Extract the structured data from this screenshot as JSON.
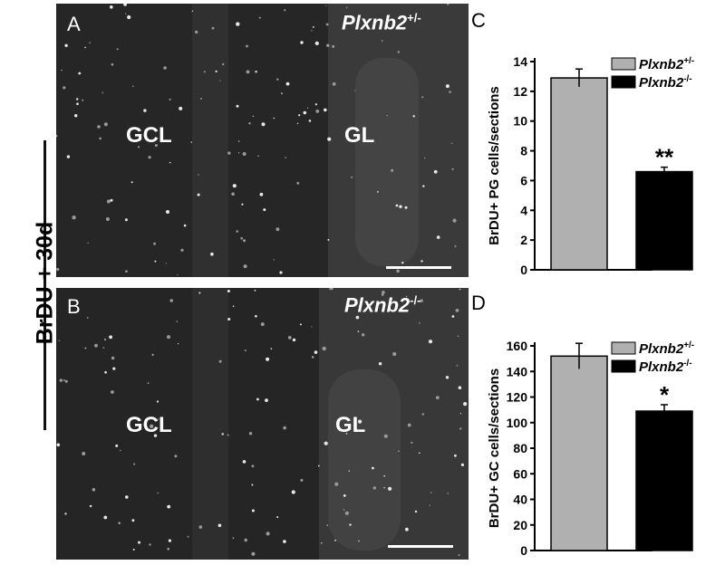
{
  "side_label": "BrDU + 30d",
  "panel_a": {
    "letter": "A",
    "genotype": "Plxnb2",
    "genotype_sup": "+/-",
    "region_left": "GCL",
    "region_right": "GL"
  },
  "panel_b": {
    "letter": "B",
    "genotype": "Plxnb2",
    "genotype_sup": "-/-",
    "region_left": "GCL",
    "region_right": "GL"
  },
  "panel_c": {
    "letter": "C"
  },
  "panel_d": {
    "letter": "D"
  },
  "colors": {
    "het": "#b0b0b0",
    "ko": "#000000",
    "micrograph_bg": "#2a2a2a"
  },
  "chart_data": [
    {
      "type": "bar",
      "panel": "C",
      "categories": [
        "Plxnb2+/-",
        "Plxnb2-/-"
      ],
      "series": [
        {
          "name": "Plxnb2+/-",
          "value": 12.9,
          "error": 0.6
        },
        {
          "name": "Plxnb2-/-",
          "value": 6.6,
          "error": 0.3
        }
      ],
      "ylabel": "BrDU+ PG cells/sections",
      "ylim": [
        0,
        14
      ],
      "yticks": [
        "0",
        "2",
        "4",
        "6",
        "8",
        "10",
        "12",
        "14"
      ],
      "legend": [
        {
          "name": "Plxnb2",
          "sup": "+/-"
        },
        {
          "name": "Plxnb2",
          "sup": "-/-"
        }
      ],
      "significance": "**"
    },
    {
      "type": "bar",
      "panel": "D",
      "categories": [
        "Plxnb2+/-",
        "Plxnb2-/-"
      ],
      "series": [
        {
          "name": "Plxnb2+/-",
          "value": 152,
          "error": 10
        },
        {
          "name": "Plxnb2-/-",
          "value": 109,
          "error": 5
        }
      ],
      "ylabel": "BrDU+ GC cells/sections",
      "ylim": [
        0,
        160
      ],
      "yticks": [
        "0",
        "20",
        "40",
        "60",
        "80",
        "100",
        "120",
        "140",
        "160"
      ],
      "legend": [
        {
          "name": "Plxnb2",
          "sup": "+/-"
        },
        {
          "name": "Plxnb2",
          "sup": "-/-"
        }
      ],
      "significance": "*"
    }
  ]
}
